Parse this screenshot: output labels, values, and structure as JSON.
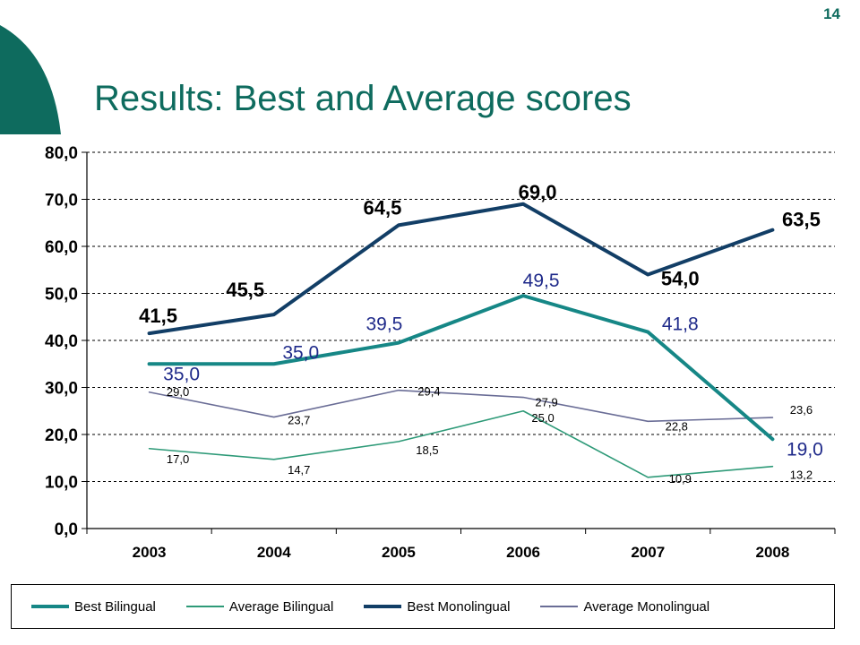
{
  "page_number": "14",
  "title": "Results: Best and Average scores",
  "colors": {
    "title": "#0e6b5e",
    "deco": "#0e6b5e"
  },
  "chart_data": {
    "type": "line",
    "categories": [
      "2003",
      "2004",
      "2005",
      "2006",
      "2007",
      "2008"
    ],
    "ylim": [
      0,
      80
    ],
    "yticks": [
      0,
      10,
      20,
      30,
      40,
      50,
      60,
      70,
      80
    ],
    "ytick_labels": [
      "0,0",
      "10,0",
      "20,0",
      "30,0",
      "40,0",
      "50,0",
      "60,0",
      "70,0",
      "80,0"
    ],
    "grid": "horizontal dashed",
    "legend_position": "bottom",
    "series": [
      {
        "name": "Best Bilingual",
        "values": [
          35.0,
          35.0,
          39.5,
          49.5,
          41.8,
          19.0
        ],
        "labels": [
          "35,0",
          "35,0",
          "39,5",
          "49,5",
          "41,8",
          "19,0"
        ],
        "color": "#168786",
        "width": 4,
        "label_color": "#1f2a8a",
        "label_size": 21,
        "label_weight": "normal"
      },
      {
        "name": "Average Bilingual",
        "values": [
          17.0,
          14.7,
          18.5,
          25.0,
          10.9,
          13.2
        ],
        "labels": [
          "17,0",
          "14,7",
          "18,5",
          "25,0",
          "10,9",
          "13,2"
        ],
        "color": "#2e9a78",
        "width": 1.6,
        "label_color": "#000000",
        "label_size": 13,
        "label_weight": "normal"
      },
      {
        "name": "Best Monolingual",
        "values": [
          41.5,
          45.5,
          64.5,
          69.0,
          54.0,
          63.5
        ],
        "labels": [
          "41,5",
          "45,5",
          "64,5",
          "69,0",
          "54,0",
          "63,5"
        ],
        "color": "#123e66",
        "width": 4,
        "label_color": "#000000",
        "label_size": 22,
        "label_weight": "bold"
      },
      {
        "name": "Average Monolingual",
        "values": [
          29.0,
          23.7,
          29.4,
          27.9,
          22.8,
          23.6
        ],
        "labels": [
          "29,0",
          "23,7",
          "29,4",
          "27,9",
          "22,8",
          "23,6"
        ],
        "color": "#6a6d96",
        "width": 1.6,
        "label_color": "#000000",
        "label_size": 13,
        "label_weight": "normal"
      }
    ]
  }
}
